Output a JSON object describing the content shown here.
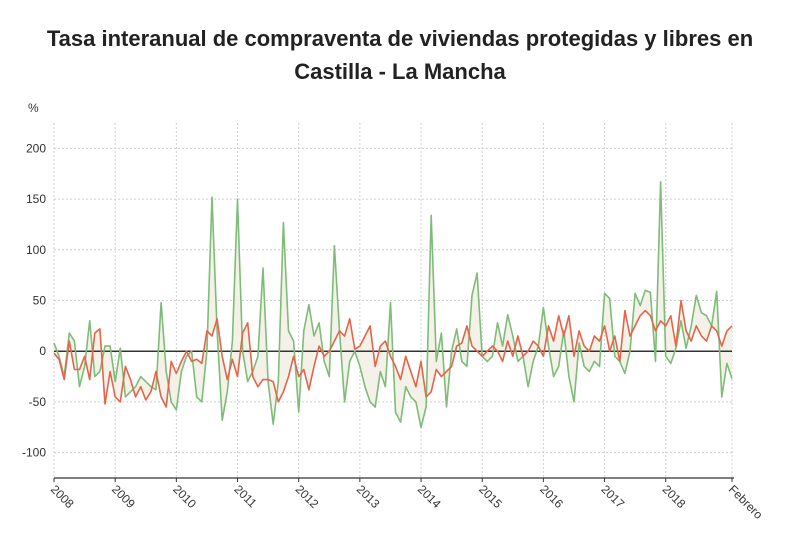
{
  "chart_data": {
    "type": "line",
    "title_line1": "Tasa interanual de compraventa de viviendas protegidas y libres en",
    "title_line2": "Castilla - La Mancha",
    "ylabel": "%",
    "ylim": [
      -125,
      225
    ],
    "yticks": [
      "-100",
      "-50",
      "0",
      "50",
      "100",
      "150",
      "200"
    ],
    "xticks": [
      "2008",
      "2009",
      "2010",
      "2011",
      "2012",
      "2013",
      "2014",
      "2015",
      "2016",
      "2017",
      "2018",
      "Febrero"
    ],
    "x_start": "2008-01",
    "x_end": "2019-02",
    "colors": {
      "protegidas": "#7dbd77",
      "libres": "#e5644a",
      "fill": "#f2efe6",
      "zero": "#333333"
    },
    "series": [
      {
        "key": "protegidas",
        "values": [
          8,
          -5,
          -25,
          18,
          10,
          -35,
          -15,
          30,
          -25,
          -20,
          5,
          5,
          -30,
          3,
          -45,
          -40,
          -35,
          -25,
          -30,
          -35,
          -38,
          48,
          -20,
          -50,
          -58,
          -20,
          -5,
          0,
          -45,
          -50,
          0,
          152,
          20,
          -68,
          -40,
          10,
          150,
          0,
          -30,
          -20,
          -5,
          82,
          -30,
          -72,
          -30,
          127,
          20,
          10,
          -60,
          20,
          46,
          15,
          28,
          -10,
          -25,
          104,
          20,
          -50,
          -10,
          0,
          -15,
          -35,
          -50,
          -55,
          -20,
          -35,
          48,
          -60,
          -70,
          -35,
          -45,
          -50,
          -75,
          -55,
          134,
          -10,
          18,
          -55,
          0,
          22,
          -10,
          -15,
          55,
          77,
          -5,
          -10,
          -5,
          28,
          5,
          36,
          15,
          -10,
          -5,
          -35,
          -10,
          5,
          43,
          5,
          -25,
          -15,
          20,
          -25,
          -50,
          8,
          -15,
          -20,
          -10,
          -15,
          57,
          52,
          -5,
          -10,
          -22,
          0,
          57,
          45,
          60,
          58,
          -10,
          167,
          -5,
          -12,
          3,
          30,
          3,
          25,
          55,
          38,
          35,
          25,
          59,
          -45,
          -12,
          -27
        ]
      },
      {
        "key": "libres",
        "values": [
          -2,
          -8,
          -28,
          10,
          -18,
          -18,
          -5,
          -28,
          18,
          22,
          -52,
          -20,
          -45,
          -50,
          -15,
          -28,
          -45,
          -35,
          -48,
          -40,
          -20,
          -45,
          -55,
          -10,
          -22,
          -10,
          0,
          -10,
          -8,
          -12,
          20,
          15,
          32,
          -5,
          -28,
          -8,
          -25,
          18,
          28,
          -25,
          -35,
          -28,
          -28,
          -30,
          -50,
          -40,
          -25,
          -5,
          -25,
          -18,
          -38,
          -15,
          5,
          -5,
          0,
          10,
          20,
          15,
          32,
          2,
          5,
          15,
          25,
          -15,
          5,
          10,
          -5,
          -15,
          -28,
          -5,
          -20,
          -35,
          -10,
          -45,
          -40,
          -18,
          -25,
          -20,
          -15,
          5,
          8,
          25,
          5,
          0,
          -5,
          0,
          5,
          0,
          -10,
          10,
          -5,
          15,
          -5,
          0,
          10,
          5,
          -5,
          25,
          10,
          35,
          15,
          35,
          -5,
          20,
          5,
          0,
          15,
          10,
          25,
          0,
          15,
          -10,
          40,
          15,
          25,
          35,
          40,
          35,
          20,
          30,
          25,
          35,
          5,
          50,
          20,
          10,
          25,
          15,
          10,
          25,
          20,
          5,
          20,
          25
        ]
      }
    ]
  }
}
